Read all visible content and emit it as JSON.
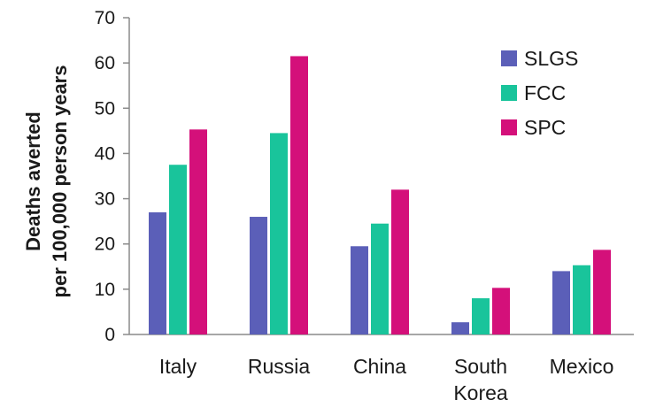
{
  "chart_data": {
    "type": "bar",
    "categories": [
      "Italy",
      "Russia",
      "China",
      "South Korea",
      "Mexico"
    ],
    "category_label_lines": [
      [
        "Italy"
      ],
      [
        "Russia"
      ],
      [
        "China"
      ],
      [
        "South",
        "Korea"
      ],
      [
        "Mexico"
      ]
    ],
    "series": [
      {
        "name": "SLGS",
        "color": "#5b5fb8",
        "values": [
          27,
          26,
          19.5,
          2.7,
          14
        ]
      },
      {
        "name": "FCC",
        "color": "#19c49b",
        "values": [
          37.5,
          44.5,
          24.5,
          8,
          15.3
        ]
      },
      {
        "name": "SPC",
        "color": "#d4107a",
        "values": [
          45.3,
          61.5,
          32,
          10.3,
          18.7
        ]
      }
    ],
    "ylabel_lines": [
      "Deaths averted",
      "per 100,000 person years"
    ],
    "xlabel": "",
    "title": "",
    "ylim": [
      0,
      70
    ],
    "yticks": [
      0,
      10,
      20,
      30,
      40,
      50,
      60,
      70
    ],
    "legend": "top-right",
    "grid": false
  }
}
